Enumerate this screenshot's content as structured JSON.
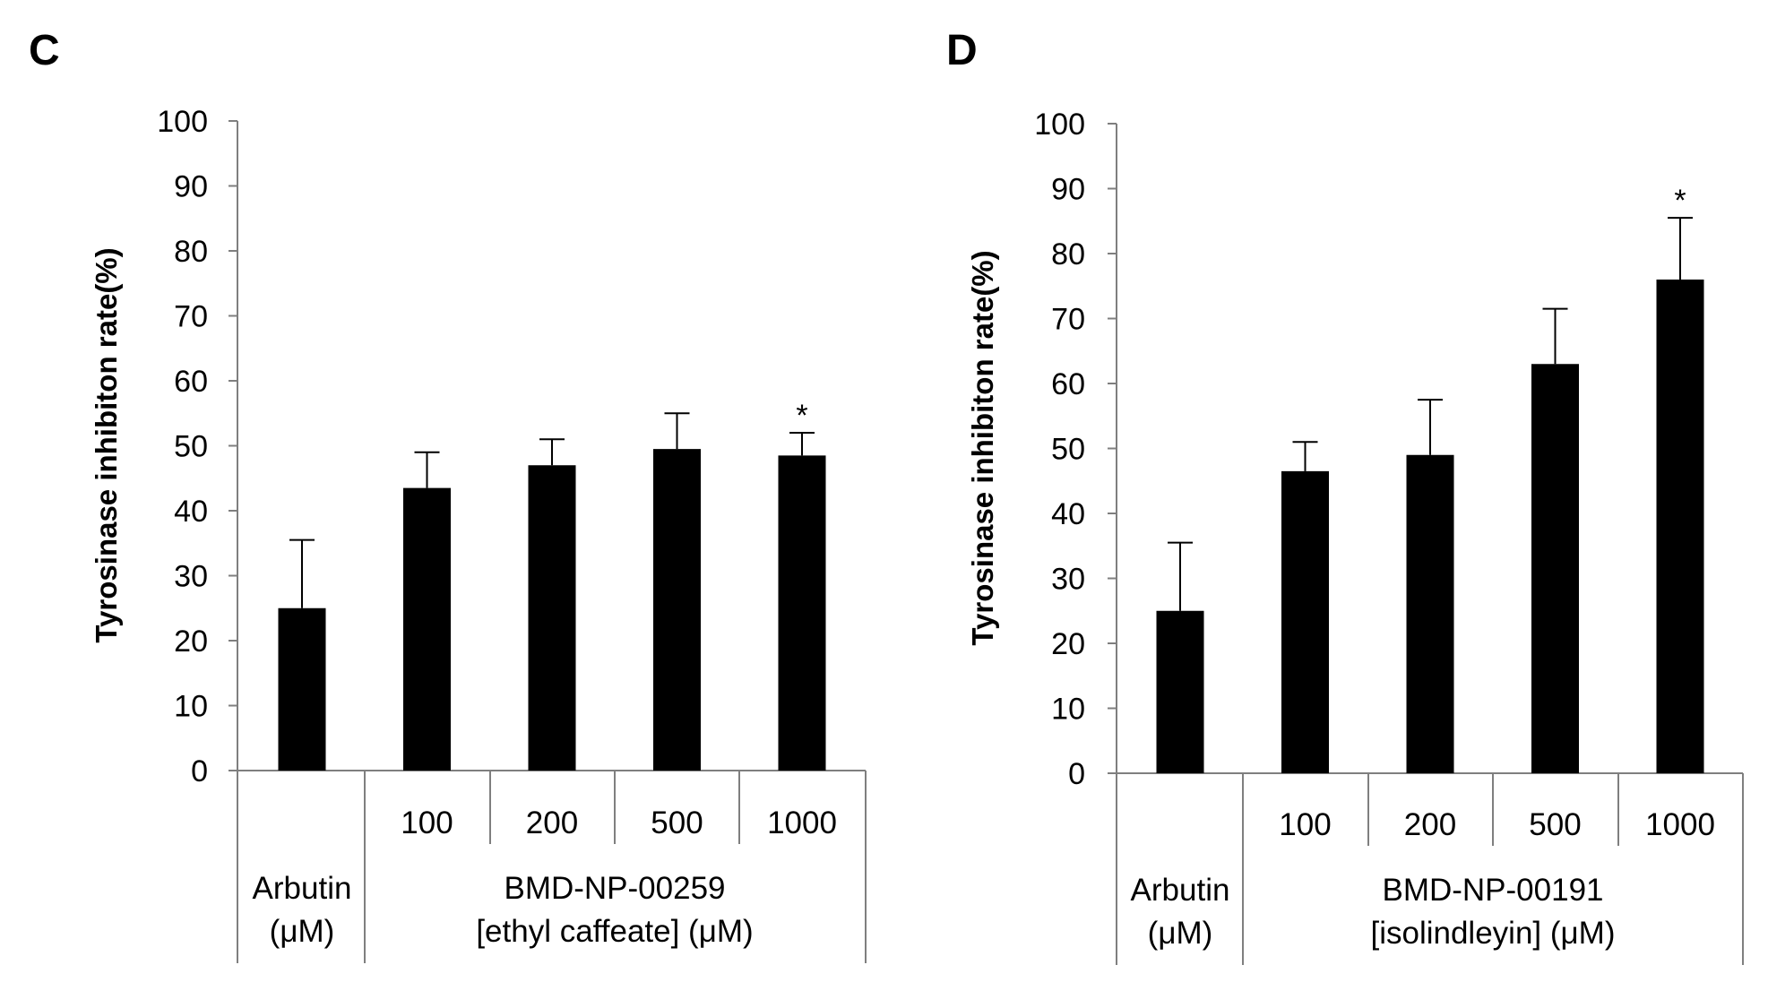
{
  "chart_data": [
    {
      "type": "bar",
      "panel_label": "C",
      "ylabel": "Tyrosinase inhibiton rate(%)",
      "ylim": [
        0,
        100
      ],
      "yticks": [
        "0",
        "10",
        "20",
        "30",
        "40",
        "50",
        "60",
        "70",
        "80",
        "90",
        "100"
      ],
      "grid": false,
      "categories": [
        "",
        "100",
        "200",
        "500",
        "1000"
      ],
      "values": [
        25,
        43.5,
        47,
        49.5,
        48.5
      ],
      "errors": [
        10.5,
        5.5,
        4,
        5.5,
        3.5
      ],
      "significance": [
        "",
        "",
        "",
        "",
        "*"
      ],
      "groups": [
        {
          "line1": "Arbutin",
          "line2": "(μM)"
        },
        {
          "line1": "BMD-NP-00259",
          "line2": "[ethyl caffeate] (μM)"
        }
      ],
      "bar_color": "#000000"
    },
    {
      "type": "bar",
      "panel_label": "D",
      "ylabel": "Tyrosinase inhibiton rate(%)",
      "ylim": [
        0,
        100
      ],
      "yticks": [
        "0",
        "10",
        "20",
        "30",
        "40",
        "50",
        "60",
        "70",
        "80",
        "90",
        "100"
      ],
      "grid": false,
      "categories": [
        "",
        "100",
        "200",
        "500",
        "1000"
      ],
      "values": [
        25,
        46.5,
        49,
        63,
        76
      ],
      "errors": [
        10.5,
        4.5,
        8.5,
        8.5,
        9.5
      ],
      "significance": [
        "",
        "",
        "",
        "",
        "*"
      ],
      "groups": [
        {
          "line1": "Arbutin",
          "line2": "(μM)"
        },
        {
          "line1": "BMD-NP-00191",
          "line2": "[isolindleyin] (μM)"
        }
      ],
      "bar_color": "#000000"
    }
  ]
}
